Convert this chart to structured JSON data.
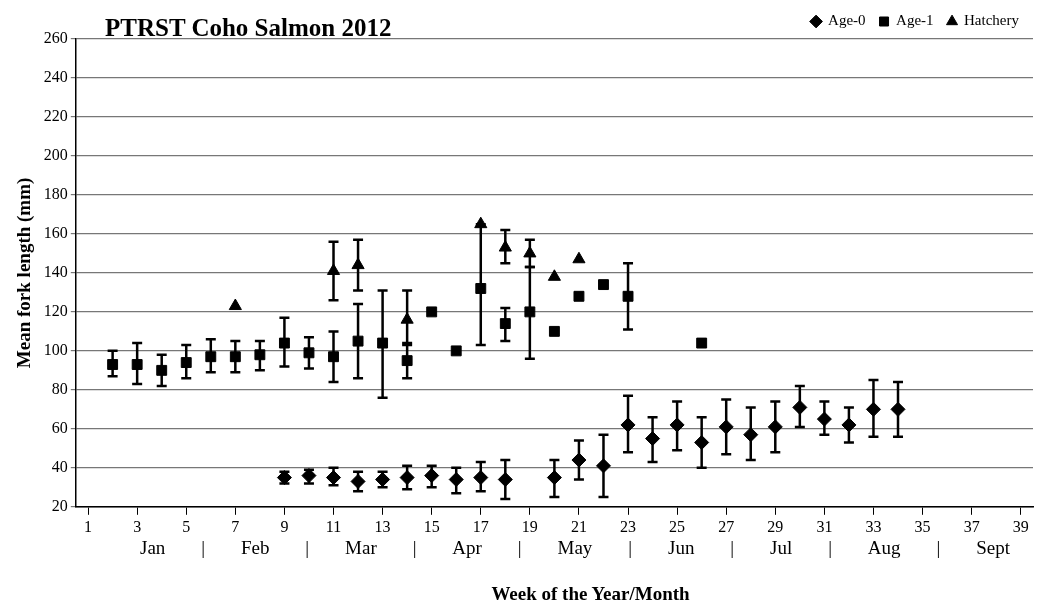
{
  "chart_data": {
    "type": "scatter",
    "title": "PTRST Coho Salmon 2012",
    "xlabel": "Week of the Year/Month",
    "ylabel": "Mean fork length (mm)",
    "annotations": [
      "Jan | Feb | Mar | Apr | May | Jun | Jul | Aug | Sept"
    ],
    "xlim": [
      0.5,
      39.5
    ],
    "xticks": [
      1,
      3,
      5,
      7,
      9,
      11,
      13,
      15,
      17,
      19,
      21,
      23,
      25,
      27,
      29,
      31,
      33,
      35,
      37,
      39
    ],
    "ylim": [
      20,
      260
    ],
    "yticks": [
      20,
      40,
      60,
      80,
      100,
      120,
      140,
      160,
      180,
      200,
      220,
      240,
      260
    ],
    "grid": "y",
    "legend": "top right",
    "series": [
      {
        "name": "Age-0",
        "color": "#000000",
        "marker": "diamond",
        "x": [
          9,
          10,
          11,
          12,
          13,
          14,
          15,
          16,
          17,
          18,
          20,
          21,
          22,
          23,
          24,
          25,
          26,
          27,
          28,
          29,
          30,
          31,
          32,
          33,
          34
        ],
        "values": [
          35,
          36,
          35,
          33,
          34,
          35,
          36,
          34,
          35,
          34,
          35,
          44,
          41,
          62,
          55,
          62,
          53,
          61,
          57,
          61,
          71,
          65,
          62,
          70,
          70
        ],
        "errors": [
          [
            32,
            38
          ],
          [
            32,
            39
          ],
          [
            31,
            40
          ],
          [
            28,
            38
          ],
          [
            30,
            38
          ],
          [
            29,
            41
          ],
          [
            30,
            41
          ],
          [
            27,
            40
          ],
          [
            28,
            43
          ],
          [
            24,
            44
          ],
          [
            25,
            44
          ],
          [
            34,
            54
          ],
          [
            25,
            57
          ],
          [
            48,
            77
          ],
          [
            43,
            66
          ],
          [
            49,
            74
          ],
          [
            40,
            66
          ],
          [
            47,
            75
          ],
          [
            44,
            71
          ],
          [
            48,
            74
          ],
          [
            61,
            82
          ],
          [
            57,
            74
          ],
          [
            53,
            71
          ],
          [
            56,
            85
          ],
          [
            56,
            84
          ]
        ]
      },
      {
        "name": "Age-1",
        "color": "#000000",
        "marker": "square",
        "x": [
          2,
          3,
          4,
          5,
          6,
          7,
          8,
          9,
          10,
          11,
          12,
          13,
          14,
          15,
          16,
          17,
          18,
          19,
          20,
          21,
          22,
          23,
          26
        ],
        "values": [
          93,
          93,
          90,
          94,
          97,
          97,
          98,
          104,
          99,
          97,
          105,
          104,
          95,
          120,
          100,
          132,
          114,
          120,
          110,
          128,
          134,
          128,
          104
        ],
        "errors": [
          [
            87,
            100
          ],
          [
            83,
            104
          ],
          [
            82,
            98
          ],
          [
            86,
            103
          ],
          [
            89,
            106
          ],
          [
            89,
            105
          ],
          [
            90,
            105
          ],
          [
            92,
            117
          ],
          [
            91,
            107
          ],
          [
            84,
            110
          ],
          [
            86,
            124
          ],
          [
            76,
            131
          ],
          [
            86,
            104
          ],
          null,
          null,
          [
            103,
            165
          ],
          [
            105,
            122
          ],
          [
            96,
            143
          ],
          null,
          null,
          null,
          [
            111,
            145
          ],
          null
        ]
      },
      {
        "name": "Hatchery",
        "color": "#000000",
        "marker": "triangle",
        "x": [
          7,
          11,
          12,
          14,
          17,
          18,
          19,
          20,
          21
        ],
        "values": [
          123,
          141,
          144,
          116,
          165,
          153,
          150,
          138,
          147
        ],
        "errors": [
          null,
          [
            126,
            156
          ],
          [
            131,
            157
          ],
          [
            103,
            131
          ],
          null,
          [
            145,
            162
          ],
          [
            143,
            157
          ],
          null,
          null
        ]
      }
    ]
  }
}
